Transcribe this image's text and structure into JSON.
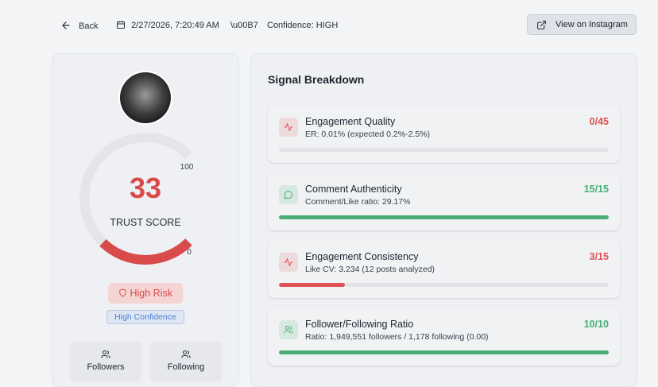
{
  "header": {
    "back": "Back",
    "date": "2/27/2026, 7:20:49 AM",
    "separator": "\\u00B7",
    "confidence": "Confidence: HIGH",
    "button": "View on Instagram"
  },
  "trust": {
    "score": 33,
    "label": "TRUST SCORE",
    "scale": [
      0,
      100
    ],
    "color": "#d94a4a",
    "risk": "High Risk",
    "confidence": "High Confidence"
  },
  "stats": [
    {
      "label": "Followers"
    },
    {
      "label": "Following"
    }
  ],
  "breakdown": {
    "title": "Signal Breakdown",
    "signals": [
      {
        "name": "Engagement Quality",
        "detail": "ER: 0.01% (expected 0.2%-2.5%)",
        "points": 0,
        "max": 45,
        "score_label": "0/45",
        "color": "#dc5252"
      },
      {
        "name": "Comment Authenticity",
        "detail": "Comment/Like ratio: 29.17%",
        "points": 15,
        "max": 15,
        "score_label": "15/15",
        "color": "#4aad74"
      },
      {
        "name": "Engagement Consistency",
        "detail": "Like CV: 3.234 (12 posts analyzed)",
        "points": 3,
        "max": 15,
        "score_label": "3/15",
        "color": "#dc5252"
      },
      {
        "name": "Follower/Following Ratio",
        "detail": "Ratio: 1,949,551 followers / 1,178 following (0.00)",
        "points": 10,
        "max": 10,
        "score_label": "10/10",
        "color": "#4aad74"
      }
    ]
  }
}
